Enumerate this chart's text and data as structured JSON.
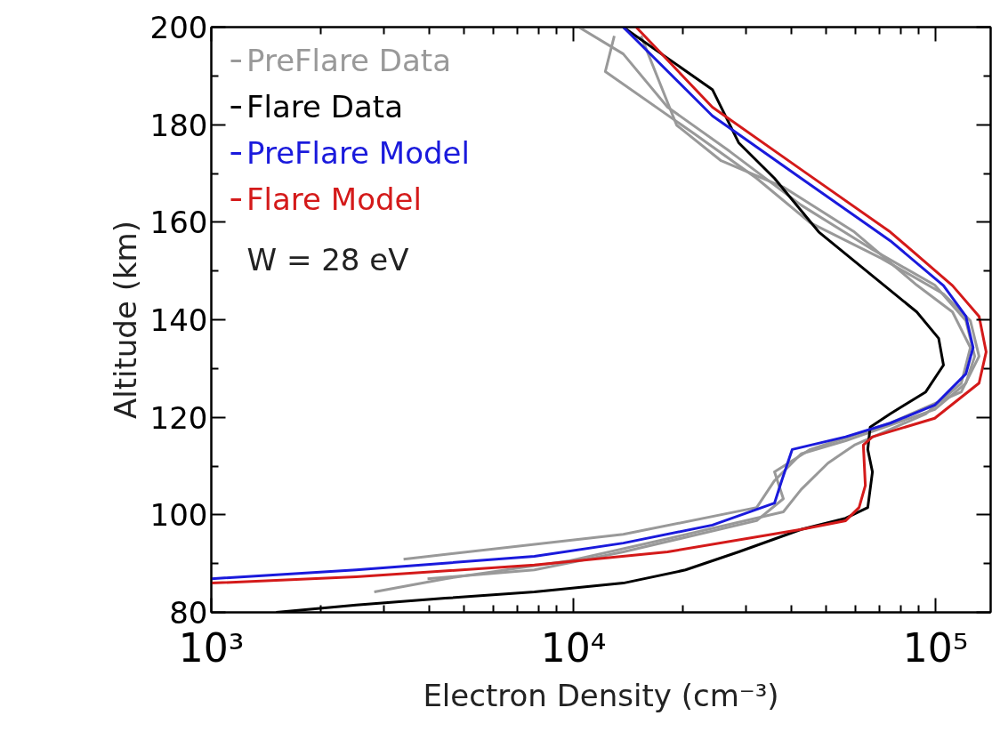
{
  "chart_data": {
    "type": "line",
    "xlabel": "Electron Density (cm⁻³)",
    "ylabel": "Altitude (km)",
    "log": "x",
    "grid": false,
    "legend": "top left",
    "line_style": "solid",
    "marker": "none",
    "xlim": [
      1000,
      142000
    ],
    "xticks": [
      {
        "value": 1000,
        "label": "10³"
      },
      {
        "value": 10000,
        "label": "10⁴"
      },
      {
        "value": 100000,
        "label": "10⁵"
      }
    ],
    "ylim": [
      80,
      200
    ],
    "yticks": [
      80,
      100,
      120,
      140,
      160,
      180,
      200
    ],
    "annotations": [
      "W = 28 eV"
    ],
    "series": [
      {
        "name": "PreFlare Data",
        "color": "#999999",
        "x": [
          3396,
          13730,
          32070,
          35920,
          42550,
          56470,
          99500,
          121300,
          128300,
          121300,
          99500,
          66960,
          42550,
          27050,
          18200,
          13730,
          10350
        ],
        "values": [
          90.9,
          96,
          101.5,
          107,
          112.5,
          115.2,
          121.6,
          127,
          132.5,
          139.8,
          147.1,
          154.4,
          163.5,
          174.5,
          183.6,
          194.5,
          200
        ]
      },
      {
        "color": "#999999",
        "x": [
          2818,
          4430,
          9780,
          18200,
          38000,
          42550,
          50450,
          59700,
          93960,
          117800,
          124800,
          111400,
          88760,
          59700,
          38000,
          25580,
          19280,
          15370
        ],
        "values": [
          84.2,
          86.9,
          90.6,
          95.1,
          100.6,
          105.2,
          110.6,
          114.3,
          120.7,
          127,
          134.3,
          141.6,
          147.1,
          158,
          167.2,
          172.6,
          179.9,
          198.2
        ]
      },
      {
        "color": "#999999",
        "x": [
          3955,
          7800,
          13730,
          32070,
          38000,
          35920,
          45060,
          74990,
          117800,
          131900,
          124800,
          105200,
          70800,
          45060,
          32070,
          21590,
          12250,
          12970
        ],
        "values": [
          86.9,
          88.7,
          92.4,
          98.8,
          103.3,
          108.8,
          113.4,
          118.8,
          125.2,
          132.5,
          139.8,
          145.3,
          152.6,
          159.9,
          169,
          178.1,
          190.9,
          198.2
        ]
      },
      {
        "name": "Flare Data",
        "color": "#000000",
        "x": [
          1510,
          2512,
          4430,
          7800,
          13730,
          20400,
          28600,
          42550,
          56470,
          65000,
          66960,
          65000,
          66000,
          74990,
          93960,
          105200,
          102000,
          88760,
          66960,
          47600,
          35920,
          28600,
          24200,
          13730
        ],
        "values": [
          80,
          81.5,
          82.9,
          84.2,
          86,
          88.7,
          92.4,
          97,
          99.3,
          101.5,
          108.8,
          113.4,
          118,
          120.7,
          125.2,
          130.7,
          136.2,
          141.6,
          149,
          158,
          169,
          176.3,
          187.2,
          200
        ]
      },
      {
        "name": "PreFlare Model",
        "color": "#1a1adc",
        "x": [
          1000,
          2512,
          7800,
          13730,
          24200,
          35920,
          37600,
          40200,
          56470,
          74990,
          99500,
          121300,
          127000,
          121300,
          105200,
          74990,
          42550,
          24200,
          13730
        ],
        "values": [
          86.9,
          88.7,
          91.5,
          94.2,
          97.9,
          102.4,
          107,
          113.4,
          116,
          118.8,
          122.5,
          128.9,
          134.3,
          140.7,
          147,
          156.2,
          169,
          181.8,
          200
        ]
      },
      {
        "name": "Flare Model",
        "color": "#d41a1a",
        "x": [
          1000,
          2512,
          7800,
          18200,
          42550,
          56470,
          61500,
          64000,
          63200,
          66960,
          99500,
          131900,
          138000,
          131900,
          111400,
          74990,
          42550,
          24200,
          14900
        ],
        "values": [
          86,
          87.3,
          89.7,
          92.4,
          97,
          98.8,
          101.5,
          106,
          114.3,
          116,
          119.8,
          127,
          133.4,
          140.7,
          147,
          158,
          170.8,
          183.6,
          200
        ]
      }
    ]
  }
}
